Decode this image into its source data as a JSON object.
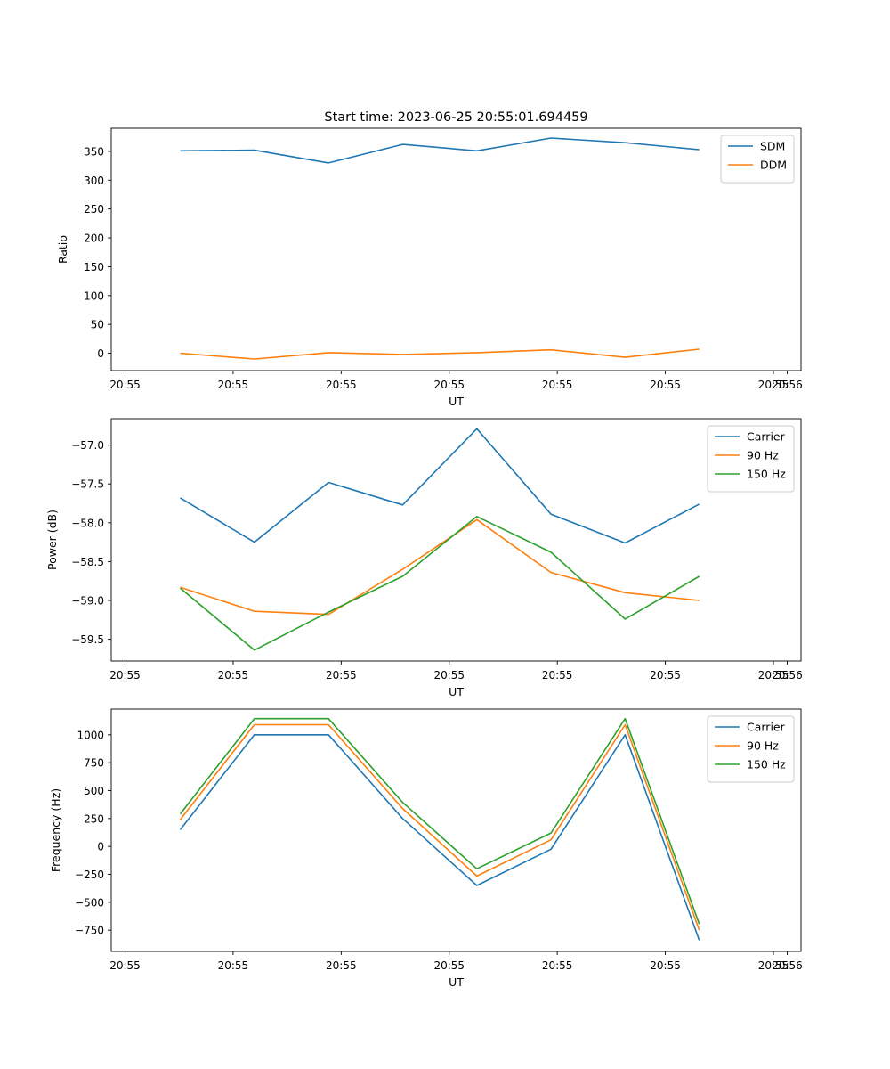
{
  "figure_title": "Start time: 2023-06-25 20:55:01.694459",
  "chart_data": [
    {
      "type": "line",
      "xlabel": "UT",
      "ylabel": "Ratio",
      "x_tick_labels": [
        "20:55",
        "20:55",
        "20:55",
        "20:55",
        "20:55",
        "20:55",
        "20:55"
      ],
      "x_tick_end_label": "20:56",
      "y_ticks": [
        0,
        50,
        100,
        150,
        200,
        250,
        300,
        350
      ],
      "y_tick_labels": [
        "0",
        "50",
        "100",
        "150",
        "200",
        "250",
        "300",
        "350"
      ],
      "ylim": [
        -30,
        390
      ],
      "legend_position": "top-right",
      "series": [
        {
          "name": "SDM",
          "color": "#1f77b4",
          "values": [
            351,
            352,
            330,
            362,
            351,
            373,
            365,
            353
          ]
        },
        {
          "name": "DDM",
          "color": "#ff7f0e",
          "values": [
            0,
            -10,
            1,
            -2,
            1,
            6,
            -7,
            7
          ]
        }
      ]
    },
    {
      "type": "line",
      "xlabel": "UT",
      "ylabel": "Power (dB)",
      "x_tick_labels": [
        "20:55",
        "20:55",
        "20:55",
        "20:55",
        "20:55",
        "20:55",
        "20:55"
      ],
      "x_tick_end_label": "20:56",
      "y_ticks": [
        -59.5,
        -59.0,
        -58.5,
        -58.0,
        -57.5,
        -57.0
      ],
      "y_tick_labels": [
        "−59.5",
        "−59.0",
        "−58.5",
        "−58.0",
        "−57.5",
        "−57.0"
      ],
      "ylim": [
        -59.78,
        -56.66
      ],
      "legend_position": "top-right",
      "series": [
        {
          "name": "Carrier",
          "color": "#1f77b4",
          "values": [
            -57.68,
            -58.25,
            -57.48,
            -57.77,
            -56.79,
            -57.89,
            -58.26,
            -57.76
          ]
        },
        {
          "name": "90 Hz",
          "color": "#ff7f0e",
          "values": [
            -58.83,
            -59.14,
            -59.18,
            -58.6,
            -57.96,
            -58.64,
            -58.9,
            -59.0
          ]
        },
        {
          "name": "150 Hz",
          "color": "#2ca02c",
          "values": [
            -58.84,
            -59.64,
            -59.15,
            -58.69,
            -57.92,
            -58.38,
            -59.24,
            -58.69
          ]
        }
      ]
    },
    {
      "type": "line",
      "xlabel": "UT",
      "ylabel": "Frequency (Hz)",
      "x_tick_labels": [
        "20:55",
        "20:55",
        "20:55",
        "20:55",
        "20:55",
        "20:55",
        "20:55"
      ],
      "x_tick_end_label": "20:56",
      "y_ticks": [
        -750,
        -500,
        -250,
        0,
        250,
        500,
        750,
        1000
      ],
      "y_tick_labels": [
        "−750",
        "−500",
        "−250",
        "0",
        "250",
        "500",
        "750",
        "1000"
      ],
      "ylim": [
        -940,
        1230
      ],
      "legend_position": "top-right",
      "series": [
        {
          "name": "Carrier",
          "color": "#1f77b4",
          "values": [
            150,
            1000,
            1000,
            250,
            -350,
            -25,
            1000,
            -840
          ]
        },
        {
          "name": "90 Hz",
          "color": "#ff7f0e",
          "values": [
            240,
            1090,
            1090,
            340,
            -265,
            60,
            1090,
            -750
          ]
        },
        {
          "name": "150 Hz",
          "color": "#2ca02c",
          "values": [
            290,
            1145,
            1145,
            395,
            -200,
            120,
            1145,
            -695
          ]
        }
      ]
    }
  ]
}
